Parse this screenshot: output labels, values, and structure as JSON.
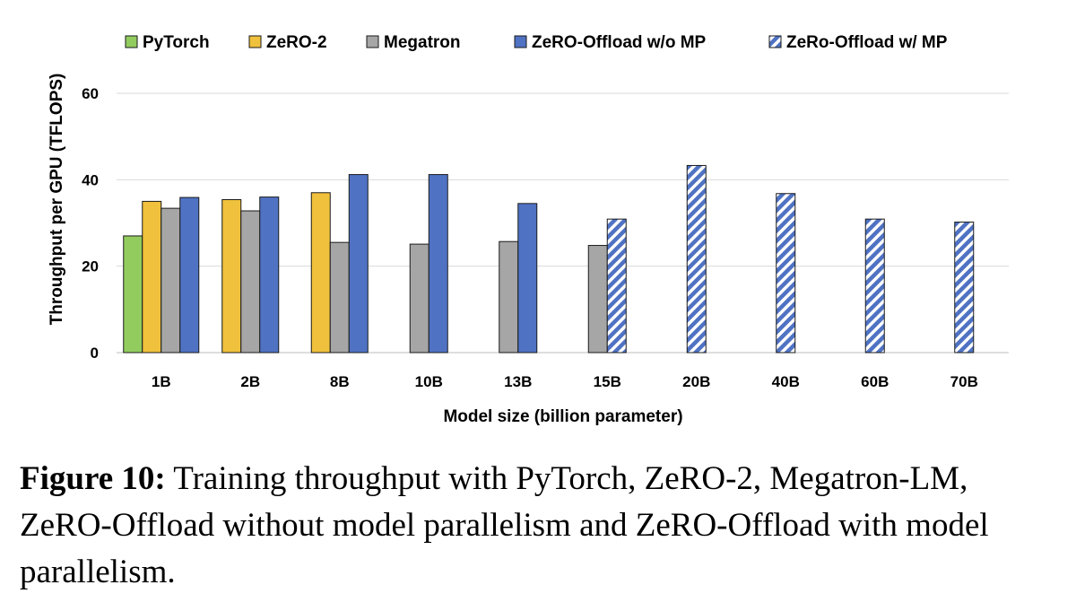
{
  "chart_data": {
    "type": "bar",
    "categories": [
      "1B",
      "2B",
      "8B",
      "10B",
      "13B",
      "15B",
      "20B",
      "40B",
      "60B",
      "70B"
    ],
    "series": [
      {
        "name": "PyTorch",
        "values": [
          27,
          null,
          null,
          null,
          null,
          null,
          null,
          null,
          null,
          null
        ]
      },
      {
        "name": "ZeRO-2",
        "values": [
          35,
          35.4,
          37,
          null,
          null,
          null,
          null,
          null,
          null,
          null
        ]
      },
      {
        "name": "Megatron",
        "values": [
          33.4,
          32.8,
          25.5,
          25.1,
          25.7,
          24.8,
          null,
          null,
          null,
          null
        ]
      },
      {
        "name": "ZeRO-Offload w/o MP",
        "values": [
          35.9,
          36,
          41.2,
          41.2,
          34.5,
          null,
          null,
          null,
          null,
          null
        ]
      },
      {
        "name": "ZeRo-Offload w/ MP",
        "values": [
          null,
          null,
          null,
          null,
          null,
          30.9,
          43.3,
          36.8,
          30.9,
          30.2
        ]
      }
    ],
    "series_colors": [
      "#92cc5e",
      "#f0c13c",
      "#a6a6a6",
      "#4f72c3",
      "#4f72c3"
    ],
    "series_hatched": [
      false,
      false,
      false,
      false,
      true
    ],
    "xlabel": "Model size (billion parameter)",
    "ylabel": "Throughput per GPU (TFLOPS)",
    "ylim": [
      0,
      60
    ],
    "yticks": [
      0,
      20,
      40,
      60
    ],
    "grid": true,
    "legend_position": "top"
  },
  "caption": {
    "label": "Figure 10:",
    "text": " Training throughput with PyTorch, ZeRO-2, Megatron-LM, ZeRO-Offload without model parallelism and ZeRO-Offload with model parallelism."
  }
}
